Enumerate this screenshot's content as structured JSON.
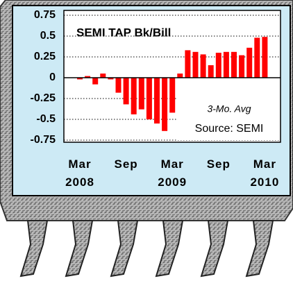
{
  "chart_data": {
    "type": "bar",
    "title": "SEMI TAP Bk/Bill",
    "annotations": [
      "3-Mo. Avg",
      "Source: SEMI"
    ],
    "categories": [
      "Mar 2008",
      null,
      null,
      null,
      null,
      null,
      "Sep",
      null,
      null,
      null,
      null,
      null,
      "Mar 2009",
      null,
      null,
      null,
      null,
      null,
      "Sep",
      null,
      null,
      null,
      null,
      null,
      "Mar 2010"
    ],
    "values": [
      -0.02,
      0.02,
      -0.08,
      0.05,
      -0.02,
      -0.18,
      -0.32,
      -0.44,
      -0.38,
      -0.5,
      -0.55,
      -0.64,
      -0.42,
      0.05,
      0.33,
      0.31,
      0.28,
      0.15,
      0.3,
      0.31,
      0.31,
      0.27,
      0.36,
      0.48,
      0.49
    ],
    "color": "#ff0000",
    "ylim": [
      -0.75,
      0.75
    ],
    "yticks": [
      0.75,
      0.5,
      0.25,
      0,
      -0.25,
      -0.5,
      -0.75
    ],
    "grid": true
  }
}
